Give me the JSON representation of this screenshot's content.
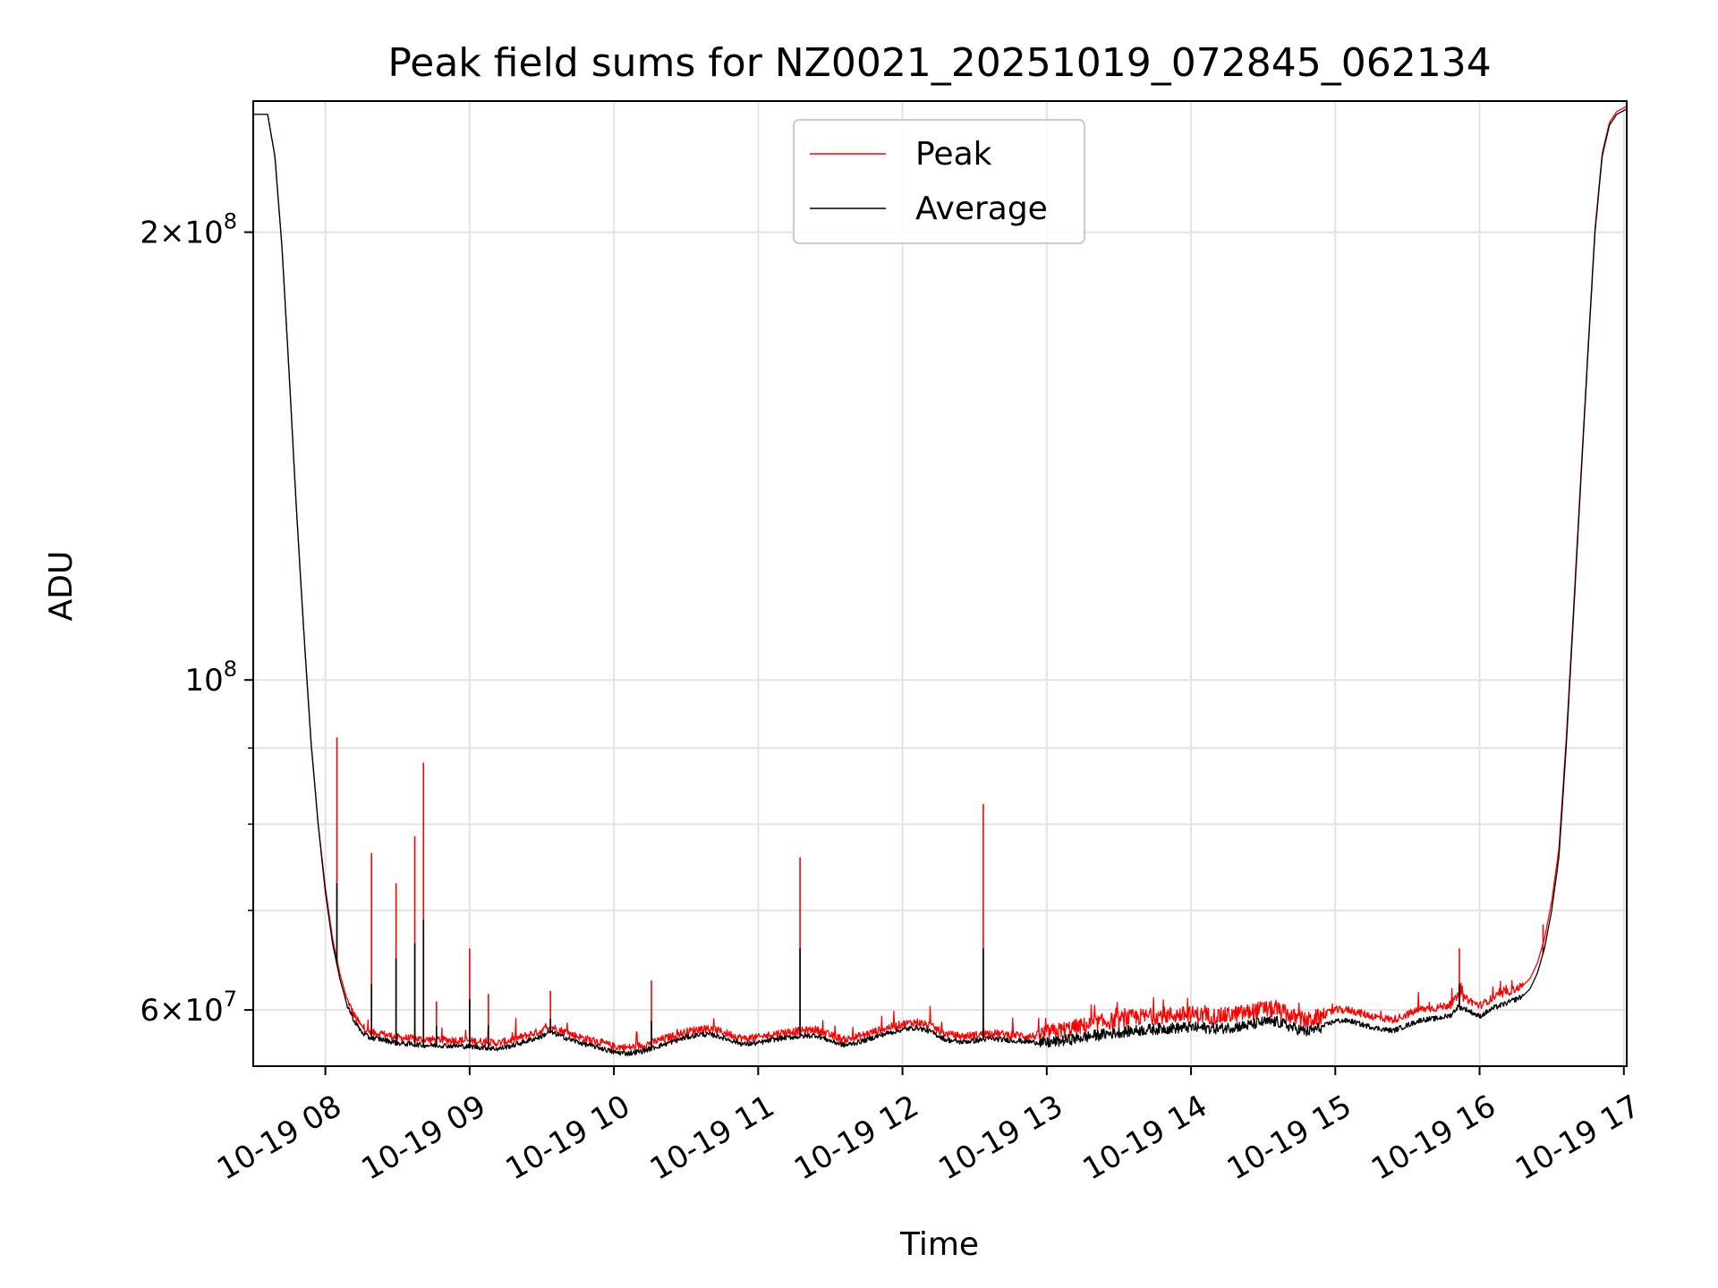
{
  "chart_data": {
    "type": "line",
    "title": "Peak field sums for NZ0021_20251019_072845_062134",
    "xlabel": "Time",
    "ylabel": "ADU",
    "yscale": "log",
    "xlim": [
      7.5,
      17.02
    ],
    "ylim": [
      55000000,
      245000000
    ],
    "grid": true,
    "legend_position": "upper center",
    "x_ticks": [
      {
        "value": 8,
        "label": "10-19 08"
      },
      {
        "value": 9,
        "label": "10-19 09"
      },
      {
        "value": 10,
        "label": "10-19 10"
      },
      {
        "value": 11,
        "label": "10-19 11"
      },
      {
        "value": 12,
        "label": "10-19 12"
      },
      {
        "value": 13,
        "label": "10-19 13"
      },
      {
        "value": 14,
        "label": "10-19 14"
      },
      {
        "value": 15,
        "label": "10-19 15"
      },
      {
        "value": 16,
        "label": "10-19 16"
      },
      {
        "value": 17,
        "label": "10-19 17"
      }
    ],
    "y_ticks": [
      {
        "value": 60000000,
        "mant": "6",
        "exp": "7"
      },
      {
        "value": 100000000,
        "mant": "",
        "exp": "8"
      },
      {
        "value": 200000000,
        "mant": "2",
        "exp": "8"
      }
    ],
    "y_minor_ticks": [
      70000000,
      80000000,
      90000000
    ],
    "series": [
      {
        "name": "Average",
        "color": "#000000",
        "x": [
          7.5,
          7.6,
          7.65,
          7.7,
          7.75,
          7.8,
          7.85,
          7.9,
          7.95,
          8.0,
          8.05,
          8.1,
          8.15,
          8.2,
          8.25,
          8.3,
          8.4,
          8.5,
          8.6,
          8.7,
          8.8,
          9.0,
          9.1,
          9.2,
          9.3,
          9.4,
          9.5,
          9.55,
          9.6,
          9.7,
          9.8,
          9.9,
          10.0,
          10.1,
          10.2,
          10.3,
          10.4,
          10.5,
          10.6,
          10.7,
          10.8,
          10.9,
          11.0,
          11.1,
          11.2,
          11.3,
          11.4,
          11.5,
          11.6,
          11.7,
          11.8,
          11.9,
          12.0,
          12.1,
          12.2,
          12.3,
          12.4,
          12.5,
          12.6,
          12.7,
          12.8,
          12.9,
          13.0,
          13.2,
          13.4,
          13.6,
          13.8,
          14.0,
          14.2,
          14.4,
          14.5,
          14.6,
          14.7,
          14.8,
          14.9,
          15.0,
          15.1,
          15.2,
          15.3,
          15.4,
          15.5,
          15.6,
          15.7,
          15.8,
          15.85,
          15.9,
          16.0,
          16.1,
          16.2,
          16.3,
          16.35,
          16.4,
          16.45,
          16.5,
          16.55,
          16.6,
          16.65,
          16.7,
          16.75,
          16.8,
          16.85,
          16.9,
          16.95,
          17.02
        ],
        "y": [
          240000000,
          240000000,
          225000000,
          195000000,
          160000000,
          130000000,
          108000000,
          91000000,
          80000000,
          72000000,
          66500000,
          63000000,
          60500000,
          59000000,
          58000000,
          57500000,
          57300000,
          57000000,
          56900000,
          56800000,
          56800000,
          56700000,
          56600000,
          56500000,
          56800000,
          57200000,
          57600000,
          58000000,
          57800000,
          57300000,
          56900000,
          56600000,
          56200000,
          56100000,
          56300000,
          56700000,
          57100000,
          57500000,
          57800000,
          57700000,
          57300000,
          56900000,
          57000000,
          57300000,
          57500000,
          57600000,
          57700000,
          57200000,
          56800000,
          57100000,
          57500000,
          57900000,
          58200000,
          58400000,
          58000000,
          57300000,
          57100000,
          57200000,
          57400000,
          57300000,
          57200000,
          57100000,
          57000000,
          57400000,
          57800000,
          58100000,
          58300000,
          58400000,
          58300000,
          58600000,
          58900000,
          58900000,
          58400000,
          58000000,
          58400000,
          59000000,
          59000000,
          58600000,
          58300000,
          58100000,
          58600000,
          59100000,
          59200000,
          59500000,
          60300000,
          60100000,
          59400000,
          60200000,
          60700000,
          61300000,
          62000000,
          63500000,
          66000000,
          70000000,
          76000000,
          90000000,
          110000000,
          135000000,
          165000000,
          200000000,
          225000000,
          236000000,
          240000000,
          242000000
        ]
      },
      {
        "name": "Peak",
        "color": "#ff0000",
        "x": [
          7.5,
          7.6,
          7.65,
          7.7,
          7.75,
          7.8,
          7.85,
          7.9,
          7.95,
          8.0,
          8.05,
          8.1,
          8.15,
          8.2,
          8.25,
          8.3,
          8.4,
          8.5,
          8.6,
          8.7,
          8.8,
          9.0,
          9.1,
          9.2,
          9.3,
          9.4,
          9.5,
          9.55,
          9.6,
          9.7,
          9.8,
          9.9,
          10.0,
          10.1,
          10.2,
          10.3,
          10.4,
          10.5,
          10.6,
          10.7,
          10.8,
          10.9,
          11.0,
          11.1,
          11.2,
          11.3,
          11.4,
          11.5,
          11.6,
          11.7,
          11.8,
          11.9,
          12.0,
          12.1,
          12.2,
          12.3,
          12.4,
          12.5,
          12.6,
          12.7,
          12.8,
          12.9,
          13.0,
          13.2,
          13.4,
          13.6,
          13.8,
          14.0,
          14.2,
          14.4,
          14.5,
          14.6,
          14.7,
          14.8,
          14.9,
          15.0,
          15.1,
          15.2,
          15.3,
          15.4,
          15.5,
          15.6,
          15.7,
          15.8,
          15.85,
          15.9,
          16.0,
          16.1,
          16.2,
          16.3,
          16.35,
          16.4,
          16.45,
          16.5,
          16.55,
          16.6,
          16.65,
          16.7,
          16.75,
          16.8,
          16.85,
          16.9,
          16.95,
          17.02
        ],
        "y": [
          240000000,
          240000000,
          225000000,
          195000000,
          160000000,
          130000000,
          108000000,
          91000000,
          80000000,
          72500000,
          67000000,
          63500000,
          61000000,
          59500000,
          58500000,
          58000000,
          57800000,
          57500000,
          57400000,
          57300000,
          57300000,
          57200000,
          57100000,
          57000000,
          57300000,
          57700000,
          58100000,
          58500000,
          58300000,
          57800000,
          57400000,
          57100000,
          56700000,
          56600000,
          56800000,
          57200000,
          57600000,
          58000000,
          58300000,
          58200000,
          57800000,
          57400000,
          57500000,
          57800000,
          58000000,
          58100000,
          58200000,
          57700000,
          57300000,
          57600000,
          58000000,
          58400000,
          58700000,
          58900000,
          58500000,
          57800000,
          57600000,
          57700000,
          57900000,
          57800000,
          57700000,
          57600000,
          57900000,
          58400000,
          58900000,
          59300000,
          59500000,
          59600000,
          59400000,
          59800000,
          60100000,
          60000000,
          59400000,
          59000000,
          59400000,
          60000000,
          60000000,
          59600000,
          59300000,
          59100000,
          59600000,
          60100000,
          60200000,
          60500000,
          61300000,
          61100000,
          60400000,
          61200000,
          61700000,
          62300000,
          63000000,
          64500000,
          67000000,
          71000000,
          77000000,
          91000000,
          111000000,
          136000000,
          166000000,
          201000000,
          226000000,
          237000000,
          241000000,
          243000000
        ]
      }
    ],
    "spikes": [
      {
        "x": 8.08,
        "peak": 91500000,
        "avg": 73000000
      },
      {
        "x": 8.32,
        "peak": 76500000,
        "avg": 62500000
      },
      {
        "x": 8.49,
        "peak": 73000000,
        "avg": 65000000
      },
      {
        "x": 8.62,
        "peak": 78500000,
        "avg": 66500000
      },
      {
        "x": 8.68,
        "peak": 88000000,
        "avg": 69000000
      },
      {
        "x": 8.77,
        "peak": 60800000,
        "avg": 58500000
      },
      {
        "x": 9.0,
        "peak": 66000000,
        "avg": 61000000
      },
      {
        "x": 9.13,
        "peak": 61500000,
        "avg": 58600000
      },
      {
        "x": 9.56,
        "peak": 61800000,
        "avg": 59200000
      },
      {
        "x": 10.26,
        "peak": 62800000,
        "avg": 59000000
      },
      {
        "x": 11.29,
        "peak": 76000000,
        "avg": 66000000
      },
      {
        "x": 12.56,
        "peak": 82500000,
        "avg": 66000000
      },
      {
        "x": 15.86,
        "peak": 66000000,
        "avg": 62500000
      },
      {
        "x": 16.44,
        "peak": 68500000,
        "avg": 66000000
      }
    ],
    "legend": [
      {
        "label": "Peak",
        "color": "#ff0000"
      },
      {
        "label": "Average",
        "color": "#000000"
      }
    ]
  }
}
